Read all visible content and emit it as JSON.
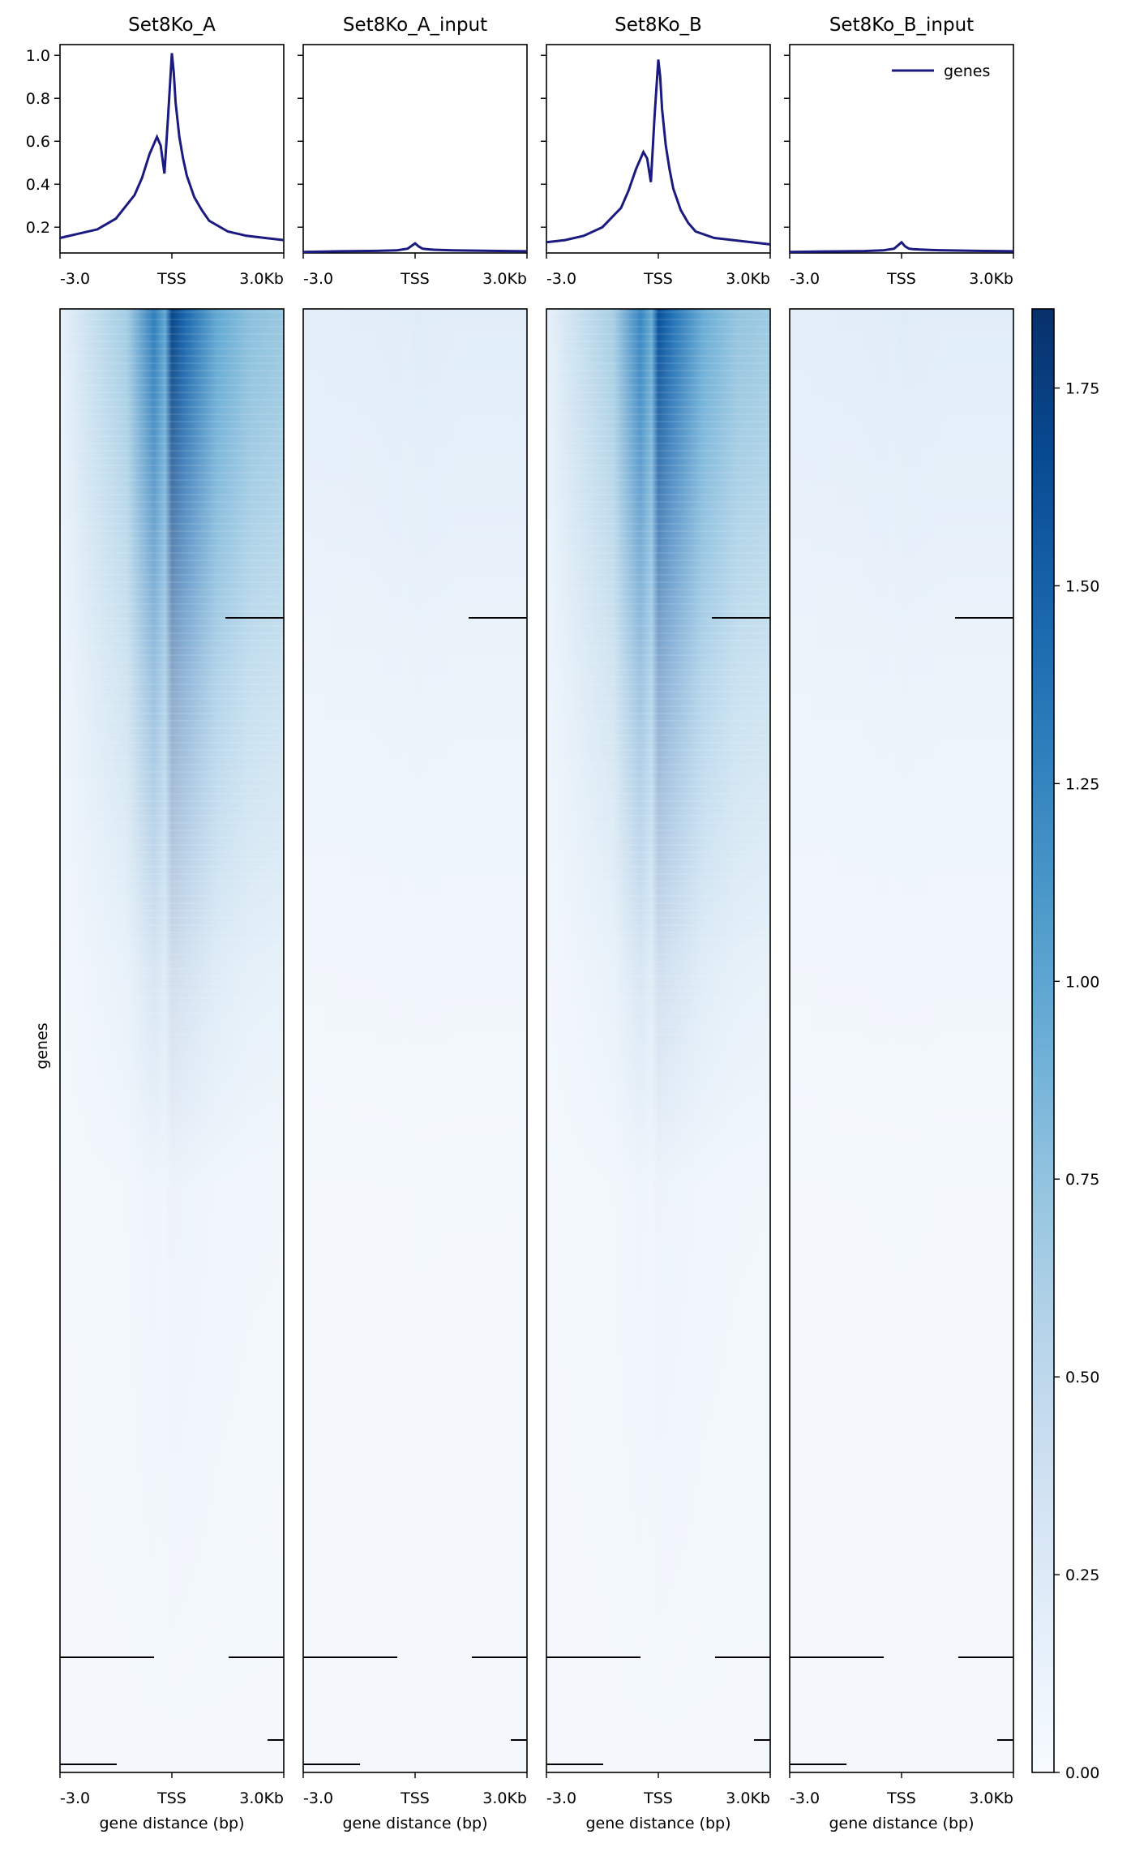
{
  "chart_data": {
    "type": "heatmap",
    "panels": [
      {
        "title": "Set8Ko_A",
        "profile": {
          "x": [
            -3000,
            -2500,
            -2000,
            -1500,
            -1000,
            -800,
            -600,
            -400,
            -300,
            -200,
            -100,
            0,
            50,
            100,
            200,
            300,
            400,
            600,
            800,
            1000,
            1500,
            2000,
            2500,
            3000
          ],
          "y": [
            0.15,
            0.17,
            0.19,
            0.24,
            0.35,
            0.43,
            0.54,
            0.62,
            0.58,
            0.45,
            0.72,
            1.01,
            0.92,
            0.78,
            0.62,
            0.52,
            0.44,
            0.34,
            0.28,
            0.23,
            0.18,
            0.16,
            0.15,
            0.14
          ]
        },
        "intensity": 1.0
      },
      {
        "title": "Set8Ko_A_input",
        "profile": {
          "x": [
            -3000,
            -2000,
            -1000,
            -500,
            -200,
            0,
            100,
            200,
            300,
            500,
            1000,
            2000,
            3000
          ],
          "y": [
            0.085,
            0.088,
            0.09,
            0.092,
            0.1,
            0.125,
            0.11,
            0.1,
            0.098,
            0.095,
            0.092,
            0.09,
            0.088
          ]
        },
        "intensity": 0.06
      },
      {
        "title": "Set8Ko_B",
        "profile": {
          "x": [
            -3000,
            -2500,
            -2000,
            -1500,
            -1000,
            -800,
            -600,
            -400,
            -300,
            -200,
            -100,
            0,
            50,
            100,
            200,
            300,
            400,
            600,
            800,
            1000,
            1500,
            2000,
            2500,
            3000
          ],
          "y": [
            0.13,
            0.14,
            0.16,
            0.2,
            0.29,
            0.37,
            0.47,
            0.55,
            0.52,
            0.41,
            0.72,
            0.98,
            0.9,
            0.75,
            0.58,
            0.47,
            0.38,
            0.28,
            0.22,
            0.18,
            0.15,
            0.14,
            0.13,
            0.12
          ]
        },
        "intensity": 0.95
      },
      {
        "title": "Set8Ko_B_input",
        "profile": {
          "x": [
            -3000,
            -2000,
            -1000,
            -500,
            -200,
            0,
            100,
            200,
            300,
            500,
            1000,
            2000,
            3000
          ],
          "y": [
            0.085,
            0.087,
            0.089,
            0.092,
            0.1,
            0.13,
            0.11,
            0.1,
            0.098,
            0.096,
            0.093,
            0.09,
            0.088
          ]
        },
        "intensity": 0.06
      }
    ],
    "profile_yticks": [
      "0.2",
      "0.4",
      "0.6",
      "0.8",
      "1.0"
    ],
    "profile_ylim": [
      0.08,
      1.05
    ],
    "xticks": [
      "-3.0",
      "TSS",
      "3.0Kb"
    ],
    "xlabel": "gene distance (bp)",
    "ylabel": "genes",
    "legend": {
      "label": "genes",
      "color": "#1a1a80",
      "position": "top-right"
    },
    "colorbar": {
      "ticks": [
        "0.00",
        "0.25",
        "0.50",
        "0.75",
        "1.00",
        "1.25",
        "1.50",
        "1.75"
      ],
      "range": [
        0,
        1.85
      ],
      "colormap": "Blues"
    },
    "line_color": "#1a1a80"
  }
}
